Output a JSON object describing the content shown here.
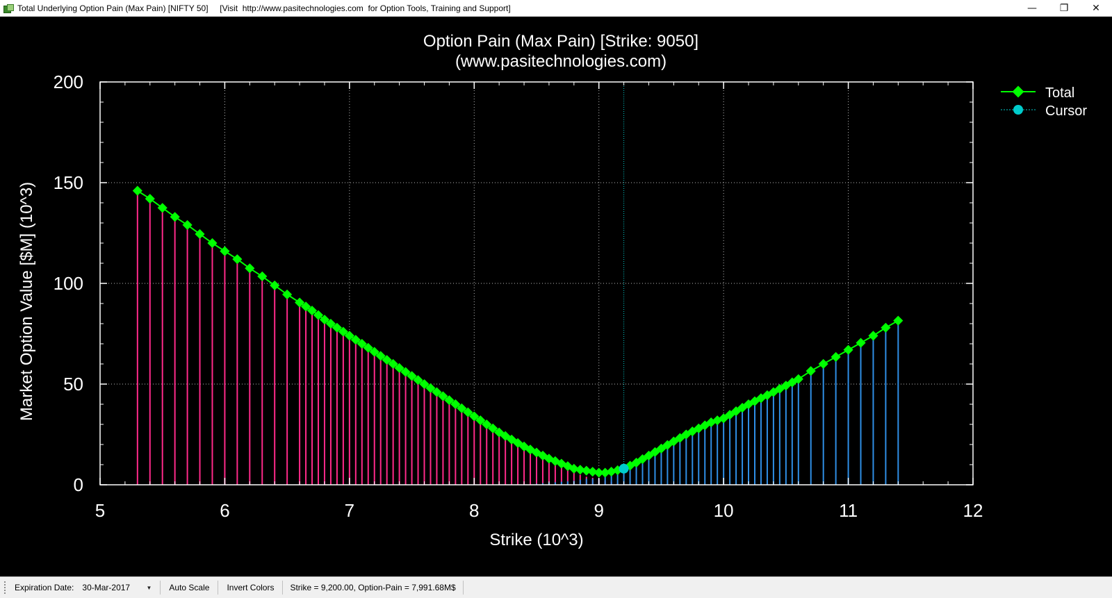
{
  "window": {
    "title": "Total Underlying Option Pain (Max Pain) [NIFTY 50]     [Visit  http://www.pasitechnologies.com  for Option Tools, Training and Support]",
    "controls": {
      "minimize": "—",
      "restore": "❐",
      "close": "✕"
    }
  },
  "statusbar": {
    "expiration_label": "Expiration Date:",
    "expiration_value": "30-Mar-2017",
    "auto_scale": "Auto Scale",
    "invert_colors": "Invert Colors",
    "readout": "Strike = 9,200.00, Option-Pain = 7,991.68M$"
  },
  "colors": {
    "background": "#000000",
    "total": "#00ff00",
    "cursor": "#00cccc",
    "call_bars": "#ff2a8a",
    "put_bars": "#2f8fe6",
    "text": "#ffffff"
  },
  "chart_data": {
    "type": "line",
    "title": "Option Pain (Max Pain) [Strike: 9050]",
    "subtitle": "(www.pasitechnologies.com)",
    "xlabel": "Strike (10^3)",
    "ylabel": "Market Option Value [$M] (10^3)",
    "xlim": [
      5,
      12
    ],
    "ylim": [
      0,
      200
    ],
    "xticks": [
      "5",
      "6",
      "7",
      "8",
      "9",
      "10",
      "11",
      "12"
    ],
    "yticks": [
      "0",
      "50",
      "100",
      "150",
      "200"
    ],
    "grid": true,
    "legend_position": "right",
    "cursor_x": 9.2,
    "legend": [
      "Total",
      "Cursor"
    ],
    "series_anchors": {
      "x": [
        5.3,
        5.4,
        5.5,
        5.6,
        5.7,
        5.8,
        5.9,
        6.0,
        6.1,
        6.2,
        6.3,
        6.4,
        6.5,
        6.6,
        6.7,
        6.8,
        6.9,
        7.0,
        7.2,
        7.4,
        7.6,
        7.8,
        8.0,
        8.2,
        8.4,
        8.6,
        8.8,
        8.9,
        9.0,
        9.05,
        9.1,
        9.2,
        9.3,
        9.5,
        9.7,
        9.9,
        10.0,
        10.2,
        10.4,
        10.6,
        10.7,
        10.8,
        10.9,
        11.0,
        11.1,
        11.2,
        11.3,
        11.4
      ],
      "total": [
        146,
        142,
        137.5,
        133,
        129,
        124.5,
        120,
        116,
        112,
        107.5,
        103.5,
        99,
        94.5,
        90.5,
        86.5,
        82,
        78,
        74,
        66,
        58,
        50,
        42,
        34,
        26,
        19,
        13,
        8,
        7,
        6,
        6,
        6.5,
        8,
        11,
        18,
        25,
        31,
        33,
        40,
        46,
        52.5,
        56.5,
        60,
        63.5,
        67,
        70.5,
        74,
        78,
        81.5
      ],
      "calls": [
        146,
        142,
        137.5,
        133,
        129,
        124.5,
        120,
        116,
        112,
        107.5,
        103.5,
        99,
        94.5,
        90.5,
        86.5,
        82,
        78,
        74,
        66,
        58,
        50,
        42,
        34,
        26,
        19,
        12,
        6,
        4,
        3,
        2,
        1.5,
        0,
        0,
        0,
        0,
        0,
        0,
        0,
        0,
        0,
        0,
        0,
        0,
        0,
        0,
        0,
        0,
        0
      ],
      "puts": [
        0,
        0,
        0,
        0,
        0,
        0,
        0,
        0,
        0,
        0,
        0,
        0,
        0,
        0,
        0,
        0,
        0,
        0,
        0,
        0,
        0,
        0,
        0,
        0,
        0,
        1,
        2,
        3,
        3,
        4,
        5,
        8,
        11,
        18,
        25,
        31,
        33,
        40,
        46,
        52.5,
        56.5,
        60,
        63.5,
        67,
        70.5,
        74,
        78,
        81.5
      ]
    }
  }
}
